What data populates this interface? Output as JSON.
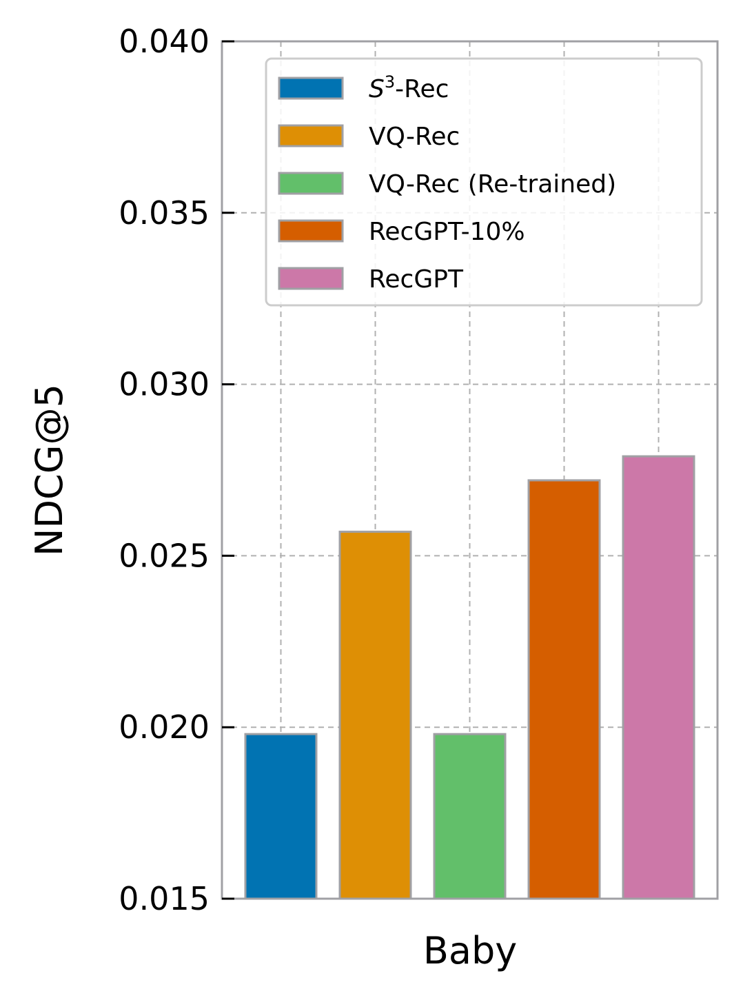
{
  "chart_data": {
    "type": "bar",
    "title": "",
    "xlabel": "Baby",
    "ylabel": "NDCG@5",
    "ylim": [
      0.015,
      0.04
    ],
    "yticks": [
      "0.015",
      "0.020",
      "0.025",
      "0.030",
      "0.035",
      "0.040"
    ],
    "ytick_values": [
      0.015,
      0.02,
      0.025,
      0.03,
      0.035,
      0.04
    ],
    "grid": true,
    "legend_position": "top-right",
    "categories": [
      "Baby"
    ],
    "series": [
      {
        "name": "S3-Rec",
        "label_base": "S",
        "label_sup": "3",
        "label_rest": "-Rec",
        "values": [
          0.0198
        ],
        "color": "#0173b2"
      },
      {
        "name": "VQ-Rec",
        "label": "VQ-Rec",
        "values": [
          0.0257
        ],
        "color": "#de8f05"
      },
      {
        "name": "VQ-Rec (Re-trained)",
        "label": "VQ-Rec (Re-trained)",
        "values": [
          0.0198
        ],
        "color": "#62bf6a"
      },
      {
        "name": "RecGPT-10%",
        "label": "RecGPT-10%",
        "values": [
          0.0272
        ],
        "color": "#d55e00"
      },
      {
        "name": "RecGPT",
        "label": "RecGPT",
        "values": [
          0.0279
        ],
        "color": "#cc78a8"
      }
    ],
    "bar_edge_color": "#a0a0a4",
    "spine_color": "#a0a0a4",
    "grid_color": "#b0b0b0"
  }
}
